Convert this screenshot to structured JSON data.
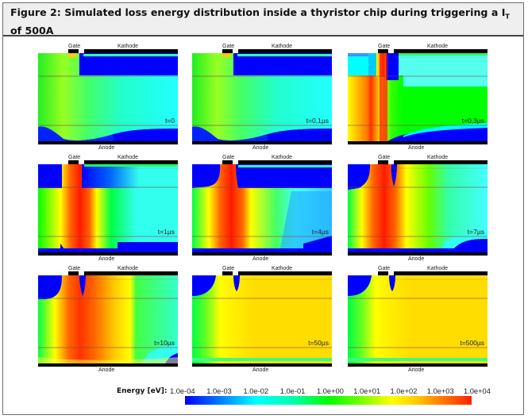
{
  "figure": {
    "title_prefix": "Figure 2: Simulated loss energy distribution inside a thyristor chip during triggering a I",
    "title_sub": "T",
    "title_suffix": " of 500A"
  },
  "labels": {
    "gate": "Gate",
    "kathode": "Kathode",
    "anode": "Anode"
  },
  "panels": [
    {
      "time": "t=0",
      "state": "t0"
    },
    {
      "time": "t=0,1µs",
      "state": "t0"
    },
    {
      "time": "t=0,3µs",
      "state": "t03"
    },
    {
      "time": "t=1µs",
      "state": "t1"
    },
    {
      "time": "t=4µs",
      "state": "t4"
    },
    {
      "time": "t=7µs",
      "state": "t7"
    },
    {
      "time": "t=10µs",
      "state": "t10"
    },
    {
      "time": "t=50µs",
      "state": "t50"
    },
    {
      "time": "t=500µs",
      "state": "t50"
    }
  ],
  "legend": {
    "label": "Energy [eV]:",
    "ticks": [
      "1.0e-04",
      "1.0e-03",
      "1.0e-02",
      "1.0e-01",
      "1.0e+00",
      "1.0e+01",
      "1.0e+02",
      "1.0e+03",
      "1.0e+04"
    ],
    "colors": [
      "#0000ff",
      "#00ffff",
      "#00ff00",
      "#ffff00",
      "#ff0000"
    ]
  }
}
